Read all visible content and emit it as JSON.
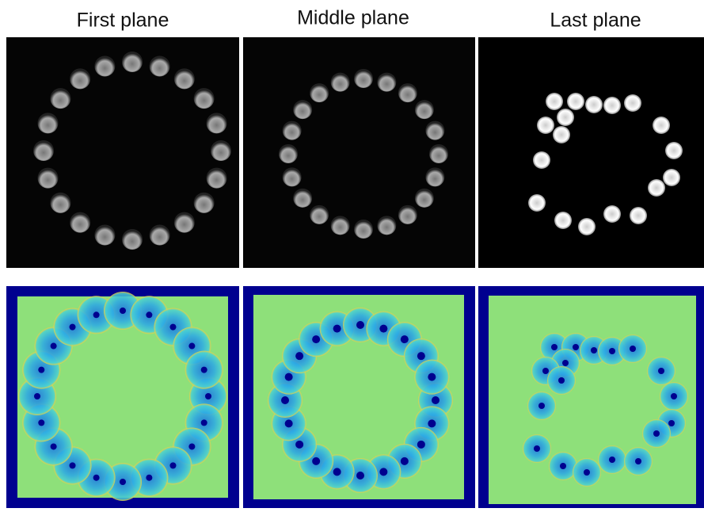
{
  "titles": [
    "First plane",
    "Middle plane",
    "Last plane"
  ]
}
